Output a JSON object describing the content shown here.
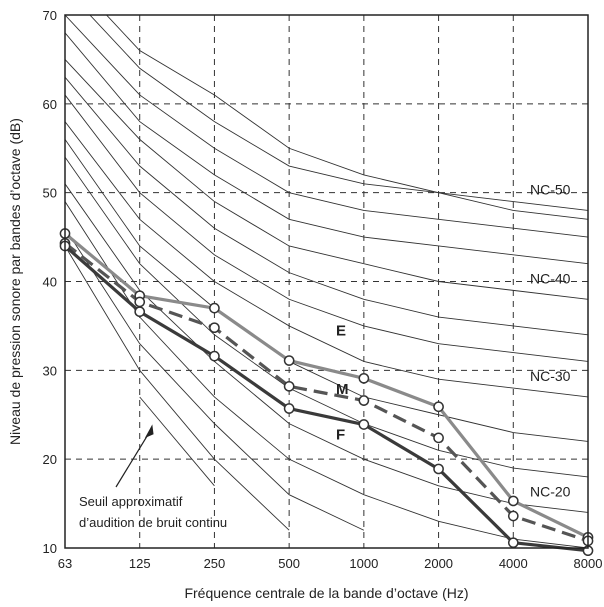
{
  "chart_data": {
    "type": "line",
    "xlabel": "Fréquence centrale de la bande d’octave (Hz)",
    "ylabel": "Niveau de pression sonore par bandes d’octave (dB)",
    "x_categories": [
      "63",
      "125",
      "250",
      "500",
      "1000",
      "2000",
      "4000",
      "8000"
    ],
    "y_ticks": [
      10,
      20,
      30,
      40,
      50,
      60,
      70
    ],
    "ylim": [
      10,
      70
    ],
    "grid": "dashed",
    "nc_curves": [
      {
        "label": "",
        "values": [
          null,
          27,
          17,
          null,
          null,
          null,
          null,
          null
        ]
      },
      {
        "label": "",
        "values": [
          44,
          30,
          20,
          12,
          null,
          null,
          null,
          null
        ]
      },
      {
        "label": "",
        "values": [
          46,
          33,
          24,
          16,
          12,
          null,
          null,
          null
        ]
      },
      {
        "label": "",
        "values": [
          49,
          36,
          27,
          20,
          16,
          13,
          11,
          10
        ]
      },
      {
        "label": "NC-20",
        "values": [
          51,
          39,
          31,
          24,
          20,
          17,
          15,
          14
        ]
      },
      {
        "label": "",
        "values": [
          54,
          42,
          34,
          28,
          24,
          21,
          19,
          18
        ]
      },
      {
        "label": "",
        "values": [
          56,
          44,
          37,
          31,
          27,
          25,
          23,
          22
        ]
      },
      {
        "label": "NC-30",
        "values": [
          58,
          47,
          40,
          35,
          31,
          29,
          28,
          27
        ]
      },
      {
        "label": "",
        "values": [
          61,
          50,
          43,
          38,
          35,
          33,
          32,
          31
        ]
      },
      {
        "label": "",
        "values": [
          63,
          53,
          46,
          41,
          38,
          36,
          35,
          34
        ]
      },
      {
        "label": "NC-40",
        "values": [
          65,
          56,
          49,
          44,
          42,
          40,
          39,
          38
        ]
      },
      {
        "label": "",
        "values": [
          68,
          58,
          52,
          47,
          45,
          44,
          43,
          42
        ]
      },
      {
        "label": "",
        "values": [
          70,
          61,
          55,
          50,
          48,
          47,
          46,
          45
        ]
      },
      {
        "label": "NC-50",
        "values": [
          73,
          64,
          58,
          53,
          51,
          50,
          49,
          48
        ]
      },
      {
        "label": "",
        "values": [
          75,
          66,
          61,
          55,
          52,
          50,
          48,
          47
        ]
      }
    ],
    "series": [
      {
        "name": "E",
        "color": "#8a8a8a",
        "dash": "solid",
        "values": [
          45.4,
          38.4,
          37.0,
          31.1,
          29.1,
          25.9,
          15.3,
          11.2
        ]
      },
      {
        "name": "M",
        "color": "#555555",
        "dash": "dashed",
        "values": [
          44.3,
          37.7,
          34.8,
          28.2,
          26.6,
          22.4,
          13.6,
          10.8
        ]
      },
      {
        "name": "F",
        "color": "#3a3a3a",
        "dash": "solid",
        "values": [
          44.0,
          36.6,
          31.6,
          25.7,
          23.9,
          18.9,
          10.6,
          9.7
        ]
      }
    ],
    "annotation": {
      "lines": [
        "Seuil approximatif",
        "d’audition de bruit continu"
      ]
    }
  }
}
